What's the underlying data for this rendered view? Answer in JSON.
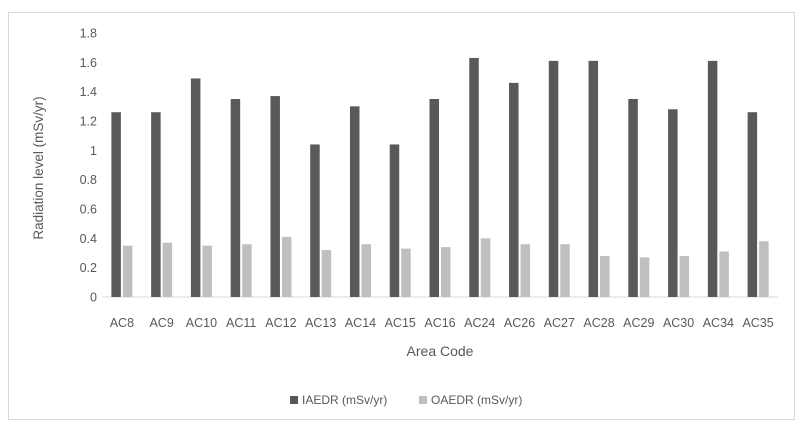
{
  "chart_data": {
    "type": "bar",
    "xlabel": "Area Code",
    "ylabel": "Radiation level (mSv/yr)",
    "ylim": [
      0,
      1.8
    ],
    "yticks": [
      "0",
      "0.2",
      "0.4",
      "0.6",
      "0.8",
      "1",
      "1.2",
      "1.4",
      "1.6",
      "1.8"
    ],
    "grid": false,
    "legend_position": "bottom",
    "categories": [
      "AC8",
      "AC9",
      "AC10",
      "AC11",
      "AC12",
      "AC13",
      "AC14",
      "AC15",
      "AC16",
      "AC24",
      "AC26",
      "AC27",
      "AC28",
      "AC29",
      "AC30",
      "AC34",
      "AC35"
    ],
    "series": [
      {
        "name": "IAEDR (mSv/yr)",
        "color": "#595959",
        "values": [
          1.26,
          1.26,
          1.49,
          1.35,
          1.37,
          1.04,
          1.3,
          1.04,
          1.35,
          1.63,
          1.46,
          1.61,
          1.61,
          1.35,
          1.28,
          1.61,
          1.26
        ]
      },
      {
        "name": "OAEDR (mSv/yr)",
        "color": "#bfbfbf",
        "values": [
          0.35,
          0.37,
          0.35,
          0.36,
          0.41,
          0.32,
          0.36,
          0.33,
          0.34,
          0.4,
          0.36,
          0.36,
          0.28,
          0.27,
          0.28,
          0.31,
          0.38
        ]
      }
    ]
  }
}
